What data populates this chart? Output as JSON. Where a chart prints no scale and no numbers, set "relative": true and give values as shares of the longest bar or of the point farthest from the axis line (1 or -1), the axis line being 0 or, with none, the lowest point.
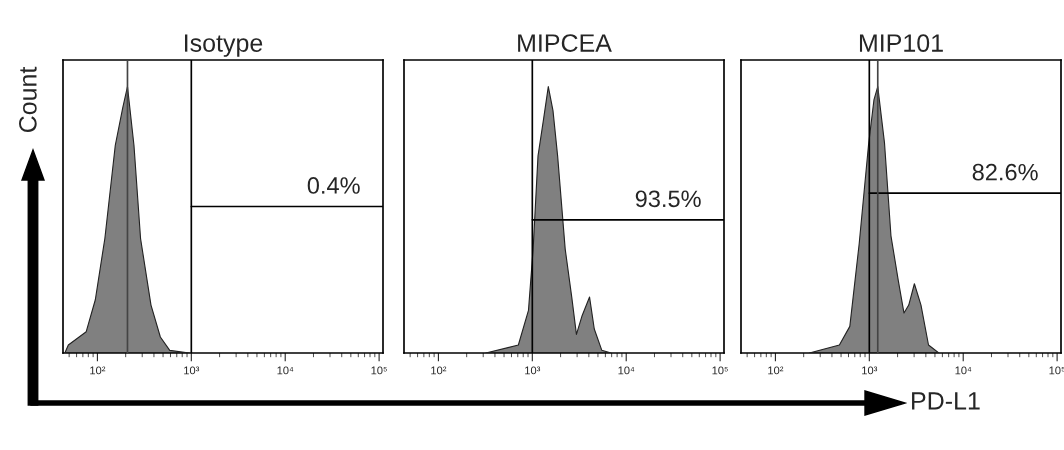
{
  "chart_data": [
    {
      "type": "area",
      "title": "Isotype",
      "ylabel": "Count",
      "relative": true,
      "log": "x",
      "tick_labels": "x",
      "xlim": [
        43,
        110000
      ],
      "xticks": [
        {
          "value": 100,
          "label": "10²"
        },
        {
          "value": 1000,
          "label": "10³"
        },
        {
          "value": 10000,
          "label": "10⁴"
        },
        {
          "value": 100000,
          "label": "10⁵"
        }
      ],
      "series": [
        {
          "color": "#808080",
          "x": [
            45,
            49,
            76,
            95,
            120,
            155,
            186,
            209,
            245,
            288,
            372,
            468,
            589,
            955
          ],
          "values": [
            0,
            0.03,
            0.08,
            0.2,
            0.43,
            0.78,
            0.92,
            1.0,
            0.78,
            0.43,
            0.18,
            0.06,
            0.01,
            0
          ]
        },
        {
          "type": "line",
          "color": "#000000",
          "x": [
            1000,
            110000
          ],
          "values": [
            0.55,
            0.55
          ]
        }
      ],
      "ref_lines": [
        {
          "axis": "x",
          "value": 1000,
          "color": "#000000"
        },
        {
          "axis": "x",
          "value": 209,
          "color": "#444444"
        }
      ],
      "annotations": [
        "0.4%"
      ]
    },
    {
      "type": "area",
      "title": "MIPCEA",
      "relative": true,
      "log": "x",
      "tick_labels": "x",
      "xlim": [
        43,
        110000
      ],
      "xticks": [
        {
          "value": 100,
          "label": "10²"
        },
        {
          "value": 1000,
          "label": "10³"
        },
        {
          "value": 10000,
          "label": "10⁴"
        },
        {
          "value": 100000,
          "label": "10⁵"
        }
      ],
      "series": [
        {
          "color": "#808080",
          "x": [
            320,
            710,
            910,
            1020,
            1150,
            1320,
            1480,
            1660,
            1860,
            2240,
            2630,
            2950,
            3390,
            4070,
            4570,
            5500,
            6900
          ],
          "values": [
            0,
            0.03,
            0.16,
            0.39,
            0.74,
            0.88,
            1.0,
            0.91,
            0.74,
            0.39,
            0.21,
            0.07,
            0.14,
            0.21,
            0.09,
            0.01,
            0
          ]
        },
        {
          "type": "line",
          "color": "#000000",
          "x": [
            1000,
            110000
          ],
          "values": [
            0.5,
            0.5
          ]
        }
      ],
      "ref_lines": [
        {
          "axis": "x",
          "value": 1000,
          "color": "#000000"
        }
      ],
      "annotations": [
        "93.5%"
      ]
    },
    {
      "type": "area",
      "title": "MIP101",
      "xlabel": "PD-L1",
      "relative": true,
      "log": "x",
      "tick_labels": "x",
      "xlim": [
        43,
        110000
      ],
      "xticks": [
        {
          "value": 100,
          "label": "10²"
        },
        {
          "value": 1000,
          "label": "10³"
        },
        {
          "value": 10000,
          "label": "10⁴"
        },
        {
          "value": 100000,
          "label": "10⁵"
        }
      ],
      "series": [
        {
          "color": "#808080",
          "x": [
            230,
            480,
            620,
            780,
            980,
            1120,
            1230,
            1450,
            1700,
            2040,
            2340,
            2630,
            3020,
            3550,
            4270,
            5500
          ],
          "values": [
            0,
            0.03,
            0.1,
            0.41,
            0.78,
            0.95,
            1.0,
            0.79,
            0.44,
            0.27,
            0.15,
            0.18,
            0.26,
            0.18,
            0.03,
            0
          ]
        },
        {
          "type": "line",
          "color": "#000000",
          "x": [
            1000,
            110000
          ],
          "values": [
            0.6,
            0.6
          ]
        }
      ],
      "ref_lines": [
        {
          "axis": "x",
          "value": 1000,
          "color": "#000000"
        },
        {
          "axis": "x",
          "value": 1230,
          "color": "#444444"
        }
      ],
      "annotations": [
        "82.6%"
      ]
    }
  ]
}
